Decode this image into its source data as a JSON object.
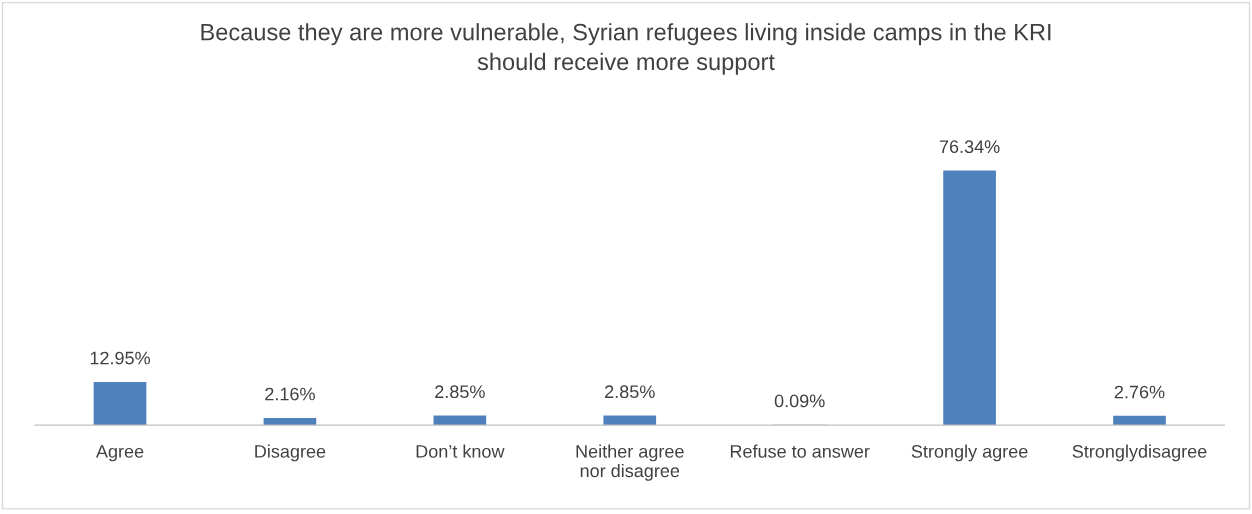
{
  "chart_data": {
    "type": "bar",
    "title": "Because they are more vulnerable, Syrian refugees living inside camps in the KRI\nshould receive more support",
    "categories": [
      "Agree",
      "Disagree",
      "Don’t know",
      "Neither agree\nnor disagree",
      "Refuse to answer",
      "Strongly agree",
      "Stronglydisagree"
    ],
    "values": [
      12.95,
      2.16,
      2.85,
      2.85,
      0.09,
      76.34,
      2.76
    ],
    "value_labels": [
      "12.95%",
      "2.16%",
      "2.85%",
      "2.85%",
      "0.09%",
      "76.34%",
      "2.76%"
    ],
    "color": "#4f81bd"
  }
}
